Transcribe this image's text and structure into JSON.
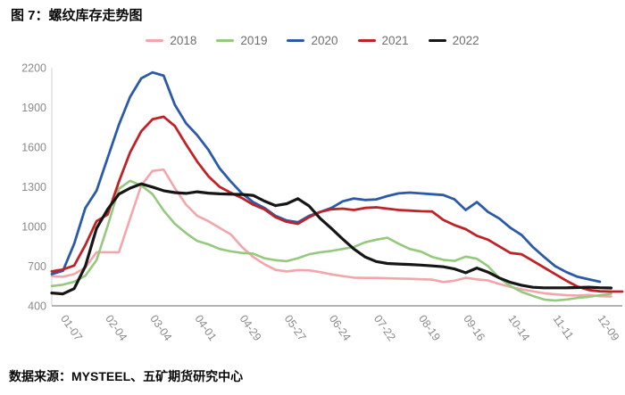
{
  "title": "图 7：螺纹库存走势图",
  "source": "数据来源：MYSTEEL、五矿期货研究中心",
  "colors": {
    "axis_line_left": "#d9d9d9",
    "axis_line_bottom": "#9b9b9b",
    "axis_text": "#8a8a8a",
    "legend_text": "#6e6e6e"
  },
  "chart_data": {
    "type": "line",
    "title": "螺纹库存走势图",
    "legend_position": "top",
    "grid": false,
    "y_axis": {
      "min": 400,
      "max": 2200,
      "ticks": [
        400,
        700,
        1000,
        1300,
        1600,
        1900,
        2200
      ]
    },
    "x_axis": {
      "tick_labels": [
        "01-07",
        "02-04",
        "03-04",
        "04-01",
        "04-29",
        "05-27",
        "06-24",
        "07-22",
        "08-19",
        "09-16",
        "10-14",
        "11-11",
        "12-09"
      ],
      "tick_indices": [
        1,
        5,
        9,
        13,
        17,
        21,
        25,
        29,
        33,
        37,
        41,
        45,
        49
      ],
      "max_points": 52,
      "frequency": "weekly"
    },
    "series": [
      {
        "name": "2018",
        "color": "#f2a6aa",
        "width": 2.6,
        "values": [
          625,
          620,
          640,
          690,
          805,
          805,
          805,
          1060,
          1310,
          1420,
          1430,
          1290,
          1165,
          1080,
          1040,
          990,
          940,
          845,
          770,
          715,
          672,
          660,
          670,
          668,
          655,
          638,
          625,
          613,
          611,
          611,
          608,
          606,
          604,
          601,
          598,
          580,
          590,
          612,
          600,
          592,
          565,
          543,
          525,
          510,
          495,
          487,
          480,
          478,
          482,
          473,
          470
        ]
      },
      {
        "name": "2019",
        "color": "#94c97e",
        "width": 2.6,
        "values": [
          550,
          560,
          582,
          628,
          745,
          1005,
          1285,
          1345,
          1310,
          1245,
          1120,
          1020,
          950,
          890,
          865,
          830,
          812,
          800,
          795,
          760,
          745,
          738,
          760,
          790,
          805,
          815,
          830,
          845,
          880,
          900,
          915,
          870,
          830,
          810,
          770,
          748,
          740,
          772,
          756,
          700,
          610,
          550,
          505,
          475,
          448,
          440,
          448,
          460,
          468,
          480,
          492
        ]
      },
      {
        "name": "2020",
        "color": "#2b5ba8",
        "width": 2.8,
        "values": [
          640,
          665,
          870,
          1140,
          1270,
          1520,
          1770,
          1980,
          2120,
          2165,
          2140,
          1920,
          1780,
          1690,
          1580,
          1440,
          1340,
          1250,
          1185,
          1140,
          1080,
          1045,
          1032,
          1080,
          1110,
          1140,
          1190,
          1212,
          1200,
          1205,
          1230,
          1250,
          1256,
          1250,
          1244,
          1238,
          1205,
          1125,
          1185,
          1110,
          1060,
          990,
          935,
          845,
          770,
          700,
          655,
          620,
          600,
          582
        ]
      },
      {
        "name": "2021",
        "color": "#bf2227",
        "width": 2.8,
        "values": [
          660,
          675,
          705,
          860,
          1040,
          1090,
          1340,
          1560,
          1720,
          1810,
          1830,
          1760,
          1620,
          1490,
          1380,
          1300,
          1255,
          1215,
          1165,
          1130,
          1070,
          1035,
          1020,
          1070,
          1110,
          1130,
          1135,
          1125,
          1140,
          1145,
          1135,
          1125,
          1120,
          1115,
          1113,
          1050,
          1010,
          980,
          930,
          900,
          850,
          800,
          790,
          740,
          690,
          640,
          590,
          545,
          520,
          510,
          508,
          508
        ]
      },
      {
        "name": "2022",
        "color": "#161616",
        "width": 3.2,
        "values": [
          497,
          490,
          530,
          700,
          985,
          1130,
          1245,
          1290,
          1322,
          1298,
          1270,
          1256,
          1250,
          1262,
          1252,
          1247,
          1244,
          1242,
          1235,
          1192,
          1158,
          1172,
          1210,
          1155,
          1060,
          985,
          905,
          830,
          770,
          735,
          720,
          716,
          713,
          708,
          702,
          695,
          679,
          650,
          686,
          655,
          611,
          577,
          556,
          540,
          536,
          536,
          536,
          538,
          541,
          537,
          535
        ]
      }
    ]
  }
}
